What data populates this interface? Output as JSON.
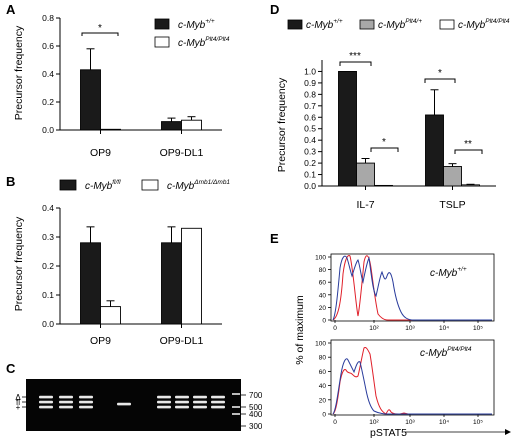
{
  "panels": {
    "A": {
      "label": "A",
      "legend": [
        {
          "base": "c-Myb",
          "sup": "+/+",
          "fill": "#1a1a1a"
        },
        {
          "base": "c-Myb",
          "sup": "Plt4/Plt4",
          "fill": "#ffffff"
        }
      ],
      "ylabel": "Precursor frequency",
      "significance": [
        "*"
      ]
    },
    "B": {
      "label": "B",
      "legend": [
        {
          "base": "c-Myb",
          "sup": "fl/fl",
          "fill": "#1a1a1a"
        },
        {
          "base": "c-Myb",
          "sup": "Δmb1/Δmb1",
          "fill": "#ffffff"
        }
      ],
      "ylabel": "Precursor frequency"
    },
    "C": {
      "label": "C",
      "lane_markers": [
        "Δ",
        "fl",
        "+"
      ],
      "size_markers": [
        "700",
        "500",
        "400",
        "300"
      ]
    },
    "D": {
      "label": "D",
      "legend": [
        {
          "base": "c-Myb",
          "sup": "+/+",
          "fill": "#1a1a1a"
        },
        {
          "base": "c-Myb",
          "sup": "Plt4/+",
          "fill": "#a8a8a8"
        },
        {
          "base": "c-Myb",
          "sup": "Plt4/Plt4",
          "fill": "#ffffff"
        }
      ],
      "ylabel": "Precursor frequency",
      "significance": [
        "***",
        "*",
        "*",
        "**"
      ]
    },
    "E": {
      "label": "E",
      "ylabel": "% of maximum",
      "xlabel": "pSTAT5",
      "yticks": [
        "0",
        "20",
        "40",
        "60",
        "80",
        "100"
      ],
      "xticks": [
        "0",
        "10²",
        "10³",
        "10⁴",
        "10⁵"
      ],
      "top_label": {
        "base": "c-Myb",
        "sup": "+/+"
      },
      "bottom_label": {
        "base": "c-Myb",
        "sup": "Plt4/Plt4"
      },
      "series_colors": [
        "#e0202a",
        "#2a3c9c"
      ]
    }
  },
  "chart_data": [
    {
      "panel": "A",
      "type": "bar",
      "categories": [
        "OP9",
        "OP9-DL1"
      ],
      "series": [
        {
          "name": "c-Myb+/+",
          "values": [
            0.43,
            0.06
          ],
          "errors": [
            0.15,
            0.025
          ]
        },
        {
          "name": "c-MybPlt4/Plt4",
          "values": [
            0.005,
            0.07
          ],
          "errors": [
            0,
            0.025
          ]
        }
      ],
      "ylim": [
        0,
        0.8
      ],
      "yticks": [
        0.0,
        0.2,
        0.4,
        0.6,
        0.8
      ],
      "ylabel": "Precursor frequency"
    },
    {
      "panel": "B",
      "type": "bar",
      "categories": [
        "OP9",
        "OP9-DL1"
      ],
      "series": [
        {
          "name": "c-Mybfl/fl",
          "values": [
            0.28,
            0.28
          ],
          "errors": [
            0.055,
            0.055
          ]
        },
        {
          "name": "c-MybΔmb1/Δmb1",
          "values": [
            0.06,
            0.33
          ],
          "errors": [
            0.02,
            0
          ]
        }
      ],
      "ylim": [
        0,
        0.4
      ],
      "yticks": [
        0.0,
        0.1,
        0.2,
        0.3,
        0.4
      ],
      "ylabel": "Precursor frequency"
    },
    {
      "panel": "D",
      "type": "bar",
      "categories": [
        "IL-7",
        "TSLP"
      ],
      "series": [
        {
          "name": "c-Myb+/+",
          "values": [
            1.0,
            0.62
          ],
          "errors": [
            0,
            0.22
          ]
        },
        {
          "name": "c-MybPlt4/+",
          "values": [
            0.2,
            0.17
          ],
          "errors": [
            0.04,
            0.025
          ]
        },
        {
          "name": "c-MybPlt4/Plt4",
          "values": [
            0.005,
            0.01
          ],
          "errors": [
            0,
            0.005
          ]
        }
      ],
      "ylim": [
        0,
        1.1
      ],
      "yticks": [
        0.0,
        0.1,
        0.2,
        0.3,
        0.4,
        0.5,
        0.6,
        0.7,
        0.8,
        0.9,
        1.0
      ],
      "ylabel": "Precursor frequency"
    }
  ]
}
